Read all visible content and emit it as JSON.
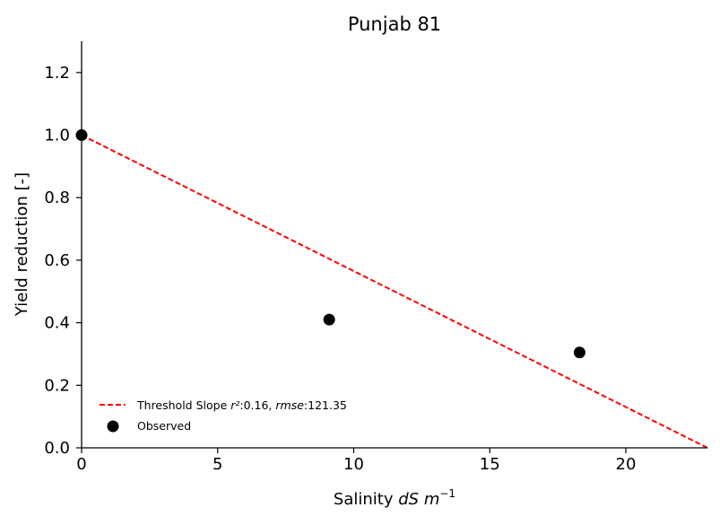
{
  "chart_data": {
    "type": "scatter",
    "title": "Punjab 81",
    "xlabel": {
      "prefix": "Salinity ",
      "unit_a": "dS",
      "unit_b": "m",
      "exponent": "−1"
    },
    "ylabel": "Yield reduction [-]",
    "xlim": [
      0,
      23
    ],
    "ylim": [
      0,
      1.3
    ],
    "xticks": [
      0,
      5,
      10,
      15,
      20
    ],
    "yticks": [
      0.0,
      0.2,
      0.4,
      0.6,
      0.8,
      1.0,
      1.2
    ],
    "xtick_labels": [
      "0",
      "5",
      "10",
      "15",
      "20"
    ],
    "ytick_labels": [
      "0.0",
      "0.2",
      "0.4",
      "0.6",
      "0.8",
      "1.0",
      "1.2"
    ],
    "grid": false,
    "legend_position": "lower-left",
    "series": [
      {
        "kind": "line",
        "style": "dashed",
        "color": "#ff0000",
        "x": [
          0,
          23
        ],
        "y": [
          1.0,
          0.0
        ],
        "legend": {
          "prefix": "Threshold Slope ",
          "r2_label": "r²",
          "r2_value": ":0.16, ",
          "rmse_label": "rmse",
          "rmse_value": ":121.35"
        }
      },
      {
        "kind": "scatter",
        "color": "#000000",
        "x": [
          0,
          9.1,
          18.3
        ],
        "y": [
          1.0,
          0.41,
          0.305
        ],
        "legend": {
          "label": "Observed"
        }
      }
    ]
  }
}
